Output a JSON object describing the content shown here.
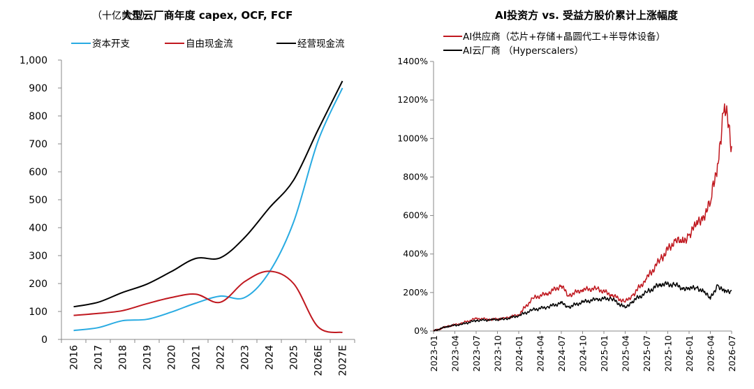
{
  "chart_data": [
    {
      "type": "line",
      "title": "大型云厂商年度 capex, OCF, FCF",
      "unit": "（十亿美元）",
      "categories": [
        "2016",
        "2017",
        "2018",
        "2019",
        "2020",
        "2021",
        "2022",
        "2023",
        "2024",
        "2025",
        "2026E",
        "2027E"
      ],
      "ylim": [
        0,
        1000
      ],
      "yticks": [
        "0",
        "100",
        "200",
        "300",
        "400",
        "500",
        "600",
        "700",
        "800",
        "900",
        "1,000"
      ],
      "legend_position": "top",
      "series": [
        {
          "name": "资本开支",
          "color": "#29abe2",
          "values": [
            32,
            42,
            67,
            72,
            98,
            130,
            155,
            150,
            240,
            420,
            710,
            900
          ]
        },
        {
          "name": "自由现金流",
          "color": "#c0181f",
          "values": [
            86,
            93,
            103,
            128,
            150,
            162,
            133,
            207,
            244,
            200,
            45,
            25
          ]
        },
        {
          "name": "经营现金流",
          "color": "#000000",
          "values": [
            117,
            133,
            168,
            198,
            243,
            290,
            292,
            365,
            470,
            570,
            750,
            925
          ]
        }
      ]
    },
    {
      "type": "line",
      "title": "AI投资方 vs. 受益方股价累计上涨幅度",
      "ylim": [
        0,
        1400
      ],
      "yticks": [
        "0%",
        "200%",
        "400%",
        "600%",
        "800%",
        "1000%",
        "1200%",
        "1400%"
      ],
      "xticks": [
        "2023-01",
        "2023-04",
        "2023-07",
        "2023-10",
        "2024-01",
        "2024-04",
        "2024-07",
        "2024-10",
        "2025-01",
        "2025-04",
        "2025-07",
        "2025-10",
        "2026-01",
        "2026-04",
        "2026-07"
      ],
      "legend_position": "top-left",
      "series": [
        {
          "name": "AI供应商（芯片+存储+晶圆代工+半导体设备）",
          "color": "#c0181f",
          "x": [
            "2023-01",
            "2023-03",
            "2023-05",
            "2023-07",
            "2023-09",
            "2023-11",
            "2024-01",
            "2024-03",
            "2024-05",
            "2024-07",
            "2024-08",
            "2024-10",
            "2024-12",
            "2025-02",
            "2025-04",
            "2025-05",
            "2025-07",
            "2025-09",
            "2025-11",
            "2025-12",
            "2026-01",
            "2026-02",
            "2026-03",
            "2026-04",
            "2026-05",
            "2026-06",
            "2026-07"
          ],
          "values": [
            0,
            25,
            40,
            65,
            60,
            65,
            85,
            170,
            195,
            235,
            185,
            215,
            220,
            190,
            150,
            185,
            270,
            375,
            470,
            460,
            500,
            550,
            600,
            660,
            870,
            1180,
            960
          ]
        },
        {
          "name": "AI云厂商 （Hyperscalers）",
          "color": "#000000",
          "x": [
            "2023-01",
            "2023-03",
            "2023-05",
            "2023-07",
            "2023-09",
            "2023-11",
            "2024-01",
            "2024-03",
            "2024-05",
            "2024-07",
            "2024-08",
            "2024-10",
            "2024-12",
            "2025-02",
            "2025-04",
            "2025-05",
            "2025-07",
            "2025-09",
            "2025-11",
            "2025-12",
            "2026-01",
            "2026-02",
            "2026-03",
            "2026-04",
            "2026-05",
            "2026-06",
            "2026-07"
          ],
          "values": [
            0,
            25,
            35,
            55,
            58,
            62,
            80,
            110,
            125,
            145,
            125,
            150,
            165,
            170,
            120,
            155,
            200,
            245,
            240,
            225,
            220,
            225,
            210,
            165,
            240,
            200,
            210
          ]
        }
      ]
    }
  ]
}
